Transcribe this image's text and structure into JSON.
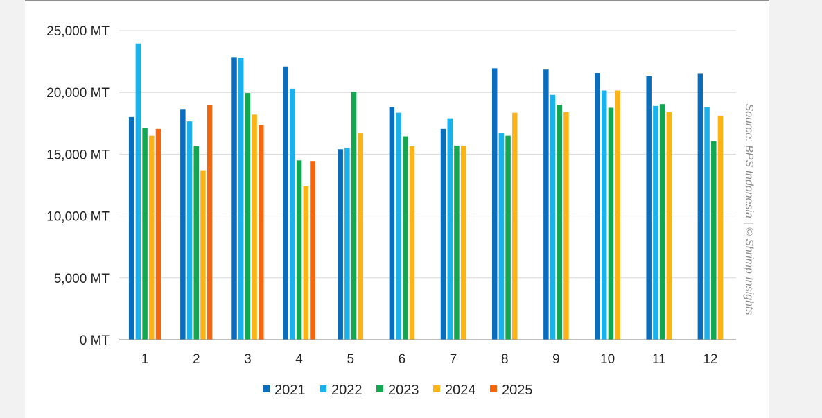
{
  "chart_data": {
    "type": "bar",
    "title": "",
    "xlabel": "",
    "ylabel": "",
    "categories": [
      "1",
      "2",
      "3",
      "4",
      "5",
      "6",
      "7",
      "8",
      "9",
      "10",
      "11",
      "12"
    ],
    "ylim": [
      0,
      25000
    ],
    "yticks": [
      0,
      5000,
      10000,
      15000,
      20000,
      25000
    ],
    "ytick_labels": [
      "0 MT",
      "5,000 MT",
      "10,000 MT",
      "15,000 MT",
      "20,000 MT",
      "25,000 MT"
    ],
    "grid": true,
    "legend_position": "bottom",
    "series": [
      {
        "name": "2021",
        "color": "#0a6ebd",
        "values": [
          18000,
          18650,
          22850,
          22100,
          15400,
          18800,
          17050,
          21950,
          21850,
          21550,
          21300,
          21500
        ]
      },
      {
        "name": "2022",
        "color": "#1ab1ec",
        "values": [
          23950,
          17650,
          22800,
          20300,
          15500,
          18350,
          17900,
          16700,
          19800,
          20150,
          18900,
          18800
        ]
      },
      {
        "name": "2023",
        "color": "#14a651",
        "values": [
          17150,
          15650,
          19950,
          14500,
          20050,
          16450,
          15700,
          16500,
          19000,
          18750,
          19050,
          16050
        ]
      },
      {
        "name": "2024",
        "color": "#fbb315",
        "values": [
          16500,
          13700,
          18200,
          12400,
          16700,
          15650,
          15700,
          18350,
          18400,
          20150,
          18400,
          18100
        ]
      },
      {
        "name": "2025",
        "color": "#f5670f",
        "values": [
          17050,
          18950,
          17350,
          14450,
          null,
          null,
          null,
          null,
          null,
          null,
          null,
          null
        ]
      }
    ],
    "annotation": "Source: BPS Indonesia | © Shrimp Insights"
  }
}
